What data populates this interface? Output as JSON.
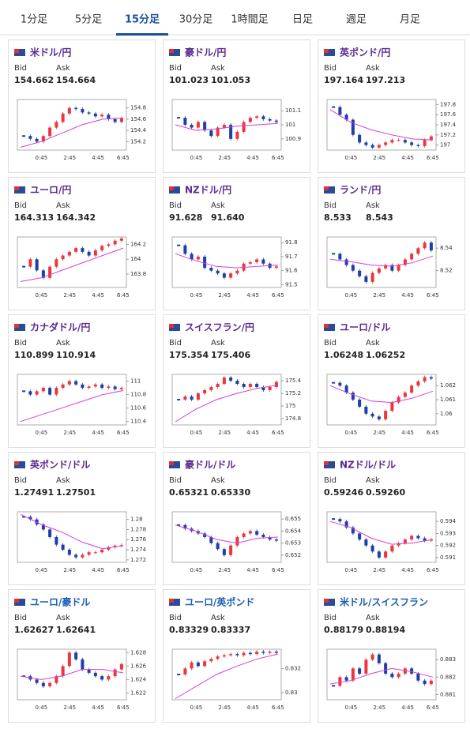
{
  "tabs": [
    "1分足",
    "5分足",
    "15分足",
    "30分足",
    "1時間足",
    "日足",
    "週足",
    "月足"
  ],
  "active_tab": 2,
  "labels": {
    "bid": "Bid",
    "ask": "Ask"
  },
  "times": [
    "0:45",
    "2:45",
    "4:45",
    "6:45"
  ],
  "cards": [
    {
      "pair": "米ドル/円",
      "bid": "154.662",
      "ask": "154.664",
      "title_color": "#5b2a8e",
      "ylim": [
        154.05,
        154.95
      ],
      "yticks": [
        154.2,
        154.4,
        154.6,
        154.8
      ],
      "closes": [
        154.3,
        154.25,
        154.2,
        154.3,
        154.45,
        154.55,
        154.7,
        154.8,
        154.78,
        154.72,
        154.7,
        154.65,
        154.68,
        154.6,
        154.55,
        154.62
      ],
      "ma": [
        154.1,
        154.2,
        154.35,
        154.5,
        154.6,
        154.62
      ]
    },
    {
      "pair": "豪ドル/円",
      "bid": "101.023",
      "ask": "101.053",
      "title_color": "#5b2a8e",
      "ylim": [
        100.82,
        101.18
      ],
      "yticks": [
        100.9,
        101,
        101.1
      ],
      "closes": [
        101.05,
        101.0,
        100.98,
        101.02,
        100.96,
        100.92,
        100.98,
        101.0,
        100.9,
        100.95,
        101.02,
        101.05,
        101.06,
        101.04,
        101.03,
        101.02
      ],
      "ma": [
        101.0,
        100.96,
        100.97,
        100.99,
        101.0,
        101.01
      ]
    },
    {
      "pair": "英ポンド/円",
      "bid": "197.164",
      "ask": "197.213",
      "title_color": "#5b2a8e",
      "ylim": [
        196.9,
        197.9
      ],
      "yticks": [
        197,
        197.2,
        197.4,
        197.6,
        197.8
      ],
      "closes": [
        197.75,
        197.6,
        197.5,
        197.2,
        197.05,
        197.0,
        196.95,
        197.0,
        197.05,
        197.1,
        197.1,
        197.05,
        197.0,
        196.98,
        197.1,
        197.17
      ],
      "ma": [
        197.7,
        197.45,
        197.3,
        197.2,
        197.12,
        197.1
      ]
    },
    {
      "pair": "ユーロ/円",
      "bid": "164.313",
      "ask": "164.342",
      "title_color": "#5b2a8e",
      "ylim": [
        163.62,
        164.3
      ],
      "yticks": [
        163.8,
        164,
        164.2
      ],
      "closes": [
        163.9,
        164.0,
        163.85,
        163.75,
        163.9,
        164.0,
        164.05,
        164.1,
        164.15,
        164.1,
        164.05,
        164.12,
        164.18,
        164.2,
        164.25,
        164.28
      ],
      "ma": [
        163.7,
        163.75,
        163.85,
        163.95,
        164.05,
        164.15
      ]
    },
    {
      "pair": "NZドル/円",
      "bid": "91.628",
      "ask": "91.640",
      "title_color": "#5b2a8e",
      "ylim": [
        91.48,
        91.84
      ],
      "yticks": [
        91.5,
        91.6,
        91.7,
        91.8
      ],
      "closes": [
        91.78,
        91.72,
        91.68,
        91.7,
        91.62,
        91.6,
        91.58,
        91.55,
        91.58,
        91.6,
        91.65,
        91.66,
        91.68,
        91.65,
        91.62,
        91.63
      ],
      "ma": [
        91.72,
        91.67,
        91.63,
        91.62,
        91.63,
        91.64
      ]
    },
    {
      "pair": "ランド/円",
      "bid": "8.533",
      "ask": "8.543",
      "title_color": "#5b2a8e",
      "ylim": [
        8.505,
        8.55
      ],
      "yticks": [
        8.52,
        8.54
      ],
      "closes": [
        8.535,
        8.53,
        8.525,
        8.52,
        8.515,
        8.51,
        8.518,
        8.522,
        8.525,
        8.52,
        8.525,
        8.53,
        8.535,
        8.54,
        8.545,
        8.538
      ],
      "ma": [
        8.53,
        8.528,
        8.525,
        8.524,
        8.527,
        8.533
      ]
    },
    {
      "pair": "カナダドル/円",
      "bid": "110.899",
      "ask": "110.914",
      "title_color": "#5b2a8e",
      "ylim": [
        110.35,
        111.1
      ],
      "yticks": [
        110.4,
        110.6,
        110.8,
        111
      ],
      "closes": [
        110.85,
        110.8,
        110.85,
        110.9,
        110.8,
        110.9,
        110.95,
        111.0,
        110.95,
        110.9,
        110.92,
        110.95,
        110.9,
        110.92,
        110.88,
        110.9
      ],
      "ma": [
        110.4,
        110.5,
        110.6,
        110.7,
        110.8,
        110.86
      ]
    },
    {
      "pair": "スイスフラン/円",
      "bid": "175.354",
      "ask": "175.406",
      "title_color": "#5b2a8e",
      "ylim": [
        174.7,
        175.5
      ],
      "yticks": [
        174.8,
        175,
        175.2,
        175.4
      ],
      "closes": [
        175.1,
        175.15,
        175.1,
        175.2,
        175.25,
        175.3,
        175.35,
        175.45,
        175.4,
        175.35,
        175.3,
        175.35,
        175.3,
        175.25,
        175.3,
        175.38
      ],
      "ma": [
        174.75,
        174.95,
        175.1,
        175.2,
        175.28,
        175.33
      ]
    },
    {
      "pair": "ユーロ/ドル",
      "bid": "1.06248",
      "ask": "1.06252",
      "title_color": "#5b2a8e",
      "ylim": [
        1.0592,
        1.0628
      ],
      "yticks": [
        1.06,
        1.061,
        1.062
      ],
      "closes": [
        1.0622,
        1.062,
        1.0615,
        1.061,
        1.0605,
        1.06,
        1.0598,
        1.0596,
        1.0602,
        1.0608,
        1.0612,
        1.0615,
        1.062,
        1.0623,
        1.0626,
        1.0625
      ],
      "ma": [
        1.062,
        1.0614,
        1.0609,
        1.0608,
        1.0611,
        1.0616
      ]
    },
    {
      "pair": "英ポンド/ドル",
      "bid": "1.27491",
      "ask": "1.27501",
      "title_color": "#5b2a8e",
      "ylim": [
        1.2715,
        1.2815
      ],
      "yticks": [
        1.272,
        1.274,
        1.276,
        1.278,
        1.28
      ],
      "closes": [
        1.2805,
        1.28,
        1.279,
        1.278,
        1.2765,
        1.275,
        1.274,
        1.273,
        1.2725,
        1.273,
        1.2735,
        1.2735,
        1.274,
        1.2745,
        1.2748,
        1.2749
      ],
      "ma": [
        1.281,
        1.279,
        1.2775,
        1.2755,
        1.2742,
        1.2748
      ]
    },
    {
      "pair": "豪ドル/ドル",
      "bid": "0.65321",
      "ask": "0.65330",
      "title_color": "#5b2a8e",
      "ylim": [
        0.6514,
        0.6556
      ],
      "yticks": [
        0.652,
        0.653,
        0.654,
        0.655
      ],
      "closes": [
        0.6545,
        0.6542,
        0.654,
        0.6538,
        0.6535,
        0.653,
        0.6525,
        0.652,
        0.6528,
        0.6535,
        0.6538,
        0.654,
        0.6537,
        0.6535,
        0.6533,
        0.6532
      ],
      "ma": [
        0.6545,
        0.654,
        0.6533,
        0.653,
        0.6534,
        0.6535
      ]
    },
    {
      "pair": "NZドル/ドル",
      "bid": "0.59246",
      "ask": "0.59260",
      "title_color": "#5b2a8e",
      "ylim": [
        0.5906,
        0.5948
      ],
      "yticks": [
        0.591,
        0.592,
        0.593,
        0.594
      ],
      "closes": [
        0.5942,
        0.594,
        0.5935,
        0.593,
        0.5925,
        0.592,
        0.5915,
        0.591,
        0.5915,
        0.592,
        0.5922,
        0.5925,
        0.5928,
        0.5926,
        0.5924,
        0.5925
      ],
      "ma": [
        0.594,
        0.5935,
        0.5926,
        0.5921,
        0.5922,
        0.5925
      ]
    },
    {
      "pair": "ユーロ/豪ドル",
      "bid": "1.62627",
      "ask": "1.62641",
      "title_color": "#1a5fb4",
      "ylim": [
        1.621,
        1.6285
      ],
      "yticks": [
        1.622,
        1.624,
        1.626,
        1.628
      ],
      "closes": [
        1.6245,
        1.624,
        1.6235,
        1.623,
        1.6235,
        1.6245,
        1.626,
        1.628,
        1.627,
        1.6255,
        1.625,
        1.6245,
        1.624,
        1.6245,
        1.6255,
        1.6263
      ],
      "ma": [
        1.6245,
        1.624,
        1.6245,
        1.6255,
        1.6255,
        1.625
      ]
    },
    {
      "pair": "ユーロ/英ポンド",
      "bid": "0.83329",
      "ask": "0.83337",
      "title_color": "#1a5fb4",
      "ylim": [
        0.8294,
        0.8336
      ],
      "yticks": [
        0.83,
        0.832
      ],
      "closes": [
        0.8315,
        0.832,
        0.8325,
        0.8322,
        0.8326,
        0.8328,
        0.833,
        0.8331,
        0.8332,
        0.8331,
        0.8333,
        0.8332,
        0.8334,
        0.8333,
        0.8334,
        0.8333
      ],
      "ma": [
        0.8295,
        0.8305,
        0.8315,
        0.8322,
        0.8328,
        0.8332
      ]
    },
    {
      "pair": "米ドル/スイスフラン",
      "bid": "0.88179",
      "ask": "0.88194",
      "title_color": "#1a5fb4",
      "ylim": [
        0.8807,
        0.8836
      ],
      "yticks": [
        0.881,
        0.882,
        0.883
      ],
      "closes": [
        0.8815,
        0.882,
        0.8818,
        0.8825,
        0.8822,
        0.883,
        0.8833,
        0.8828,
        0.8822,
        0.882,
        0.8822,
        0.8825,
        0.8822,
        0.8818,
        0.8816,
        0.8818
      ],
      "ma": [
        0.8816,
        0.8818,
        0.8822,
        0.8825,
        0.8823,
        0.882
      ]
    }
  ]
}
